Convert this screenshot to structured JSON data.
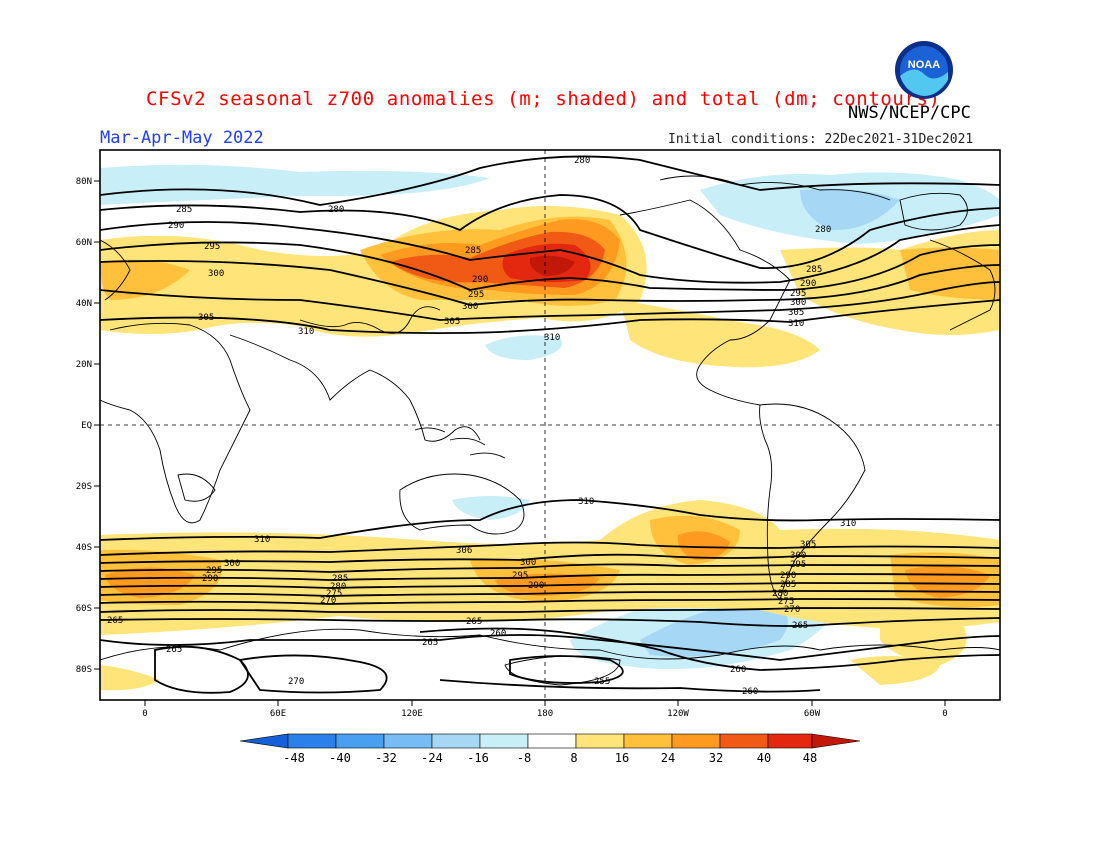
{
  "title": "CFSv2 seasonal z700 anomalies (m; shaded) and total (dm; contours)",
  "season": "Mar-Apr-May 2022",
  "initial_conditions": "Initial conditions: 22Dec2021-31Dec2021",
  "agency": "NWS/NCEP/CPC",
  "logo_text": "NOAA",
  "lat_ticks": [
    "80N",
    "60N",
    "40N",
    "20N",
    "EQ",
    "20S",
    "40S",
    "60S",
    "80S"
  ],
  "lon_ticks": [
    "0",
    "60E",
    "120E",
    "180",
    "120W",
    "60W",
    "0"
  ],
  "colorbar": {
    "labels": [
      "-48",
      "-40",
      "-32",
      "-24",
      "-16",
      "-8",
      "8",
      "16",
      "24",
      "32",
      "40",
      "48"
    ],
    "colors": [
      "#1560d8",
      "#2c80ea",
      "#4aa0f0",
      "#76bcf5",
      "#a6d8f5",
      "#c8eef8",
      "#ffffff",
      "#ffe47a",
      "#ffc13c",
      "#ff9a20",
      "#f05a14",
      "#e42810",
      "#c21808"
    ]
  },
  "contour_labels": {
    "north": [
      "280",
      "285",
      "290",
      "295",
      "300",
      "305",
      "310"
    ],
    "south": [
      "310",
      "306",
      "305",
      "300",
      "295",
      "290",
      "285",
      "280",
      "275",
      "270",
      "265",
      "260",
      "255"
    ]
  }
}
